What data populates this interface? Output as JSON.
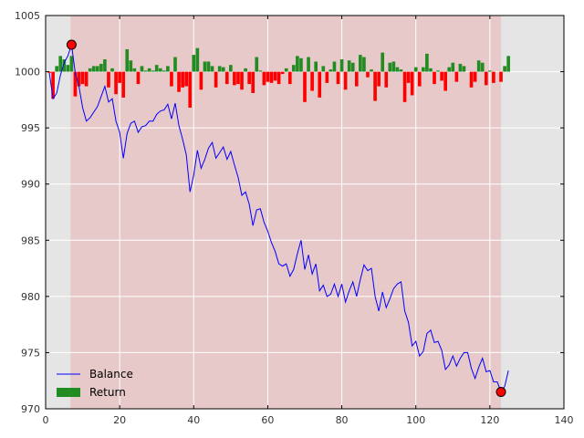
{
  "chart_data": {
    "type": "line",
    "xlim": [
      0,
      140
    ],
    "ylim": [
      970,
      1005
    ],
    "xticks": [
      0,
      20,
      40,
      60,
      80,
      100,
      120,
      140
    ],
    "yticks": [
      970,
      975,
      980,
      985,
      990,
      995,
      1000,
      1005
    ],
    "grid": true,
    "legend_placement": "lower-left",
    "shaded_span": {
      "from": 6.7,
      "to": 123
    },
    "colors": {
      "balance": "#0000ff",
      "return_up": "#228b22",
      "return_down": "#ff0000",
      "background": "#e5e5e5",
      "span": "#e7c9ca",
      "marker": "#ff0000"
    },
    "series": [
      {
        "name": "Balance",
        "x": [
          1,
          2,
          3,
          4,
          5,
          6,
          7,
          8,
          9,
          10,
          11,
          12,
          13,
          14,
          15,
          16,
          17,
          18,
          19,
          20,
          21,
          22,
          23,
          24,
          25,
          26,
          27,
          28,
          29,
          30,
          31,
          32,
          33,
          34,
          35,
          36,
          37,
          38,
          39,
          40,
          41,
          42,
          43,
          44,
          45,
          46,
          47,
          48,
          49,
          50,
          51,
          52,
          53,
          54,
          55,
          56,
          57,
          58,
          59,
          60,
          61,
          62,
          63,
          64,
          65,
          66,
          67,
          68,
          69,
          70,
          71,
          72,
          73,
          74,
          75,
          76,
          77,
          78,
          79,
          80,
          81,
          82,
          83,
          84,
          85,
          86,
          87,
          88,
          89,
          90,
          91,
          92,
          93,
          94,
          95,
          96,
          97,
          98,
          99,
          100,
          101,
          102,
          103,
          104,
          105,
          106,
          107,
          108,
          109,
          110,
          111,
          112,
          113,
          114,
          115,
          116,
          117,
          118,
          119,
          120,
          121,
          122,
          123,
          124,
          125
        ],
        "values": [
          999.9,
          997.6,
          998.1,
          999.7,
          1000.8,
          1001.4,
          1002.4,
          999.9,
          998.7,
          996.8,
          995.6,
          995.9,
          996.4,
          996.9,
          997.8,
          998.7,
          997.3,
          997.6,
          995.6,
          994.6,
          992.3,
          994.5,
          995.4,
          995.6,
          994.6,
          995.1,
          995.2,
          995.6,
          995.6,
          996.2,
          996.5,
          996.6,
          997.1,
          995.8,
          997.2,
          995.2,
          994.0,
          992.6,
          989.3,
          990.8,
          993.0,
          991.4,
          992.2,
          993.2,
          993.7,
          992.3,
          992.8,
          993.3,
          992.2,
          992.9,
          991.7,
          990.6,
          989.0,
          989.3,
          988.2,
          986.3,
          987.7,
          987.8,
          986.6,
          985.8,
          984.8,
          984.0,
          982.9,
          982.7,
          982.9,
          981.8,
          982.4,
          983.8,
          985.0,
          982.4,
          983.7,
          982.0,
          982.9,
          980.5,
          981.0,
          980.0,
          980.2,
          981.1,
          980.0,
          981.1,
          979.5,
          980.5,
          981.3,
          980.0,
          981.5,
          982.8,
          982.3,
          982.5,
          980.0,
          978.7,
          980.4,
          979.0,
          979.8,
          980.7,
          981.1,
          981.3,
          978.7,
          977.7,
          975.6,
          976.0,
          974.7,
          975.1,
          976.7,
          977.0,
          975.9,
          976.0,
          975.2,
          973.5,
          973.9,
          974.7,
          973.8,
          974.5,
          975.0,
          975.0,
          973.6,
          972.7,
          973.7,
          974.5,
          973.3,
          973.4,
          972.4,
          972.4,
          971.5,
          972.0,
          973.4
        ]
      },
      {
        "name": "Return",
        "x": [
          1,
          2,
          3,
          4,
          5,
          6,
          7,
          8,
          9,
          10,
          11,
          12,
          13,
          14,
          15,
          16,
          17,
          18,
          19,
          20,
          21,
          22,
          23,
          24,
          25,
          26,
          27,
          28,
          29,
          30,
          31,
          32,
          33,
          34,
          35,
          36,
          37,
          38,
          39,
          40,
          41,
          42,
          43,
          44,
          45,
          46,
          47,
          48,
          49,
          50,
          51,
          52,
          53,
          54,
          55,
          56,
          57,
          58,
          59,
          60,
          61,
          62,
          63,
          64,
          65,
          66,
          67,
          68,
          69,
          70,
          71,
          72,
          73,
          74,
          75,
          76,
          77,
          78,
          79,
          80,
          81,
          82,
          83,
          84,
          85,
          86,
          87,
          88,
          89,
          90,
          91,
          92,
          93,
          94,
          95,
          96,
          97,
          98,
          99,
          100,
          101,
          102,
          103,
          104,
          105,
          106,
          107,
          108,
          109,
          110,
          111,
          112,
          113,
          114,
          115,
          116,
          117,
          118,
          119,
          120,
          121,
          122,
          123,
          124,
          125
        ],
        "values": [
          -0.1,
          -2.4,
          0.5,
          1.4,
          1.1,
          0.6,
          1.4,
          -2.2,
          -1.3,
          -1.1,
          -1.3,
          0.3,
          0.5,
          0.5,
          0.7,
          1.1,
          -1.4,
          0.3,
          -2.0,
          -1.0,
          -2.3,
          2.0,
          1.0,
          0.3,
          -1.1,
          0.5,
          0.1,
          0.3,
          0.1,
          0.6,
          0.3,
          0.1,
          0.5,
          -1.3,
          1.3,
          -1.8,
          -1.4,
          -1.3,
          -3.2,
          1.5,
          2.1,
          -1.6,
          0.9,
          0.9,
          0.5,
          -1.4,
          0.5,
          0.4,
          -1.1,
          0.6,
          -1.2,
          -1.1,
          -1.6,
          0.3,
          -1.1,
          -1.9,
          1.3,
          0.1,
          -1.2,
          -0.9,
          -1.0,
          -0.8,
          -1.1,
          -0.2,
          0.3,
          -1.1,
          0.6,
          1.4,
          1.2,
          -2.7,
          1.3,
          -1.7,
          0.9,
          -2.3,
          0.5,
          -1.0,
          0.2,
          0.9,
          -1.1,
          1.1,
          -1.6,
          1.0,
          0.8,
          -1.3,
          1.5,
          1.3,
          -0.5,
          0.2,
          -2.6,
          -1.3,
          1.7,
          -1.4,
          0.8,
          0.9,
          0.4,
          0.2,
          -2.7,
          -1.0,
          -2.1,
          0.4,
          -1.3,
          0.4,
          1.6,
          0.3,
          -1.1,
          0.1,
          -0.8,
          -1.7,
          0.4,
          0.8,
          -0.9,
          0.7,
          0.5,
          0.0,
          -1.4,
          -0.9,
          1.0,
          0.8,
          -1.2,
          0.1,
          -1.0,
          0.0,
          -0.9,
          0.5,
          1.4
        ]
      }
    ],
    "markers": [
      {
        "x": 7,
        "y": 1002.4
      },
      {
        "x": 123,
        "y": 971.5
      }
    ]
  }
}
